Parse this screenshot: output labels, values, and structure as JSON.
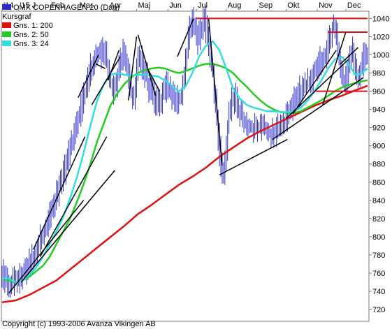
{
  "chart_data": {
    "type": "line",
    "title": "OMX COPENHAGEN 20 (Dag)",
    "subtitle": "Kursgraf",
    "copyright": "Copyright (c) 1993-2006 Avanza Vikingen AB",
    "x_tick_labels": [
      "'14",
      "'15 J",
      "Feb",
      "Mar",
      "Apr",
      "Maj",
      "Jun",
      "Jul",
      "Aug",
      "Sep",
      "Okt",
      "Nov",
      "Dec"
    ],
    "x_tick_index": [
      0,
      12,
      35,
      56,
      78,
      99,
      122,
      143,
      165,
      188,
      209,
      232,
      253
    ],
    "num_days": 270,
    "y_ticks": [
      720,
      740,
      760,
      780,
      800,
      820,
      840,
      860,
      880,
      900,
      920,
      940,
      960,
      980,
      1000,
      1020,
      1040
    ],
    "ylim": [
      707,
      1048
    ],
    "grid": false,
    "legend_position": "top-left",
    "colors": {
      "price": "#2b2bcc",
      "gns200": "#e01010",
      "gns50": "#22cc22",
      "gns24": "#33dddd",
      "trendline": "#000000",
      "resistance": "#e01010",
      "frame": "#7a7a7a"
    },
    "close_keypoints": [
      [
        0,
        760
      ],
      [
        3,
        752
      ],
      [
        6,
        748
      ],
      [
        10,
        752
      ],
      [
        14,
        755
      ],
      [
        18,
        765
      ],
      [
        22,
        773
      ],
      [
        26,
        785
      ],
      [
        30,
        800
      ],
      [
        34,
        815
      ],
      [
        38,
        830
      ],
      [
        42,
        850
      ],
      [
        46,
        870
      ],
      [
        50,
        890
      ],
      [
        54,
        910
      ],
      [
        58,
        935
      ],
      [
        62,
        960
      ],
      [
        66,
        985
      ],
      [
        70,
        998
      ],
      [
        73,
        1002
      ],
      [
        76,
        1005
      ],
      [
        79,
        985
      ],
      [
        82,
        960
      ],
      [
        85,
        970
      ],
      [
        88,
        990
      ],
      [
        90,
        1000
      ],
      [
        93,
        985
      ],
      [
        96,
        960
      ],
      [
        98,
        950
      ],
      [
        101,
        1000
      ],
      [
        104,
        990
      ],
      [
        107,
        975
      ],
      [
        110,
        960
      ],
      [
        113,
        950
      ],
      [
        116,
        945
      ],
      [
        119,
        955
      ],
      [
        122,
        965
      ],
      [
        126,
        955
      ],
      [
        130,
        950
      ],
      [
        133,
        955
      ],
      [
        136,
        990
      ],
      [
        139,
        1030
      ],
      [
        141,
        1040
      ],
      [
        143,
        1030
      ],
      [
        145,
        1015
      ],
      [
        148,
        1030
      ],
      [
        150,
        1040
      ],
      [
        152,
        1020
      ],
      [
        154,
        1000
      ],
      [
        156,
        980
      ],
      [
        158,
        945
      ],
      [
        160,
        910
      ],
      [
        162,
        880
      ],
      [
        164,
        872
      ],
      [
        166,
        900
      ],
      [
        168,
        935
      ],
      [
        170,
        955
      ],
      [
        173,
        950
      ],
      [
        176,
        935
      ],
      [
        180,
        925
      ],
      [
        184,
        920
      ],
      [
        188,
        918
      ],
      [
        192,
        922
      ],
      [
        196,
        915
      ],
      [
        200,
        913
      ],
      [
        204,
        918
      ],
      [
        208,
        925
      ],
      [
        212,
        935
      ],
      [
        216,
        950
      ],
      [
        220,
        960
      ],
      [
        224,
        965
      ],
      [
        228,
        975
      ],
      [
        232,
        985
      ],
      [
        236,
        995
      ],
      [
        240,
        1005
      ],
      [
        243,
        1025
      ],
      [
        245,
        1035
      ],
      [
        247,
        1020
      ],
      [
        249,
        1000
      ],
      [
        251,
        980
      ],
      [
        253,
        965
      ],
      [
        255,
        975
      ],
      [
        257,
        995
      ],
      [
        259,
        1005
      ],
      [
        261,
        985
      ],
      [
        263,
        975
      ],
      [
        265,
        985
      ],
      [
        267,
        998
      ],
      [
        269,
        995
      ]
    ],
    "series": [
      {
        "name": "OMX COPENHAGEN 20 (Dag)",
        "kind": "price-bars"
      },
      {
        "name": "Kursgraf",
        "kind": "trendlines"
      },
      {
        "name": "Gns. 1: 200",
        "period": 200,
        "values": [
          [
            0,
            728
          ],
          [
            10,
            730
          ],
          [
            20,
            736
          ],
          [
            30,
            744
          ],
          [
            40,
            752
          ],
          [
            50,
            764
          ],
          [
            60,
            776
          ],
          [
            70,
            788
          ],
          [
            80,
            800
          ],
          [
            90,
            812
          ],
          [
            100,
            825
          ],
          [
            110,
            835
          ],
          [
            120,
            846
          ],
          [
            130,
            857
          ],
          [
            140,
            866
          ],
          [
            150,
            876
          ],
          [
            160,
            888
          ],
          [
            170,
            898
          ],
          [
            180,
            908
          ],
          [
            190,
            916
          ],
          [
            200,
            923
          ],
          [
            210,
            930
          ],
          [
            220,
            937
          ],
          [
            230,
            944
          ],
          [
            240,
            950
          ],
          [
            250,
            955
          ],
          [
            260,
            961
          ],
          [
            269,
            966
          ]
        ]
      },
      {
        "name": "Gns. 2: 50",
        "period": 50,
        "values": [
          [
            0,
            754
          ],
          [
            5,
            752
          ],
          [
            10,
            750
          ],
          [
            15,
            752
          ],
          [
            20,
            756
          ],
          [
            25,
            762
          ],
          [
            30,
            768
          ],
          [
            35,
            778
          ],
          [
            40,
            792
          ],
          [
            45,
            806
          ],
          [
            50,
            820
          ],
          [
            55,
            838
          ],
          [
            60,
            858
          ],
          [
            65,
            880
          ],
          [
            70,
            905
          ],
          [
            75,
            925
          ],
          [
            80,
            945
          ],
          [
            85,
            958
          ],
          [
            90,
            968
          ],
          [
            95,
            975
          ],
          [
            100,
            980
          ],
          [
            105,
            983
          ],
          [
            110,
            985
          ],
          [
            115,
            986
          ],
          [
            120,
            985
          ],
          [
            125,
            982
          ],
          [
            130,
            980
          ],
          [
            135,
            982
          ],
          [
            140,
            985
          ],
          [
            145,
            988
          ],
          [
            150,
            990
          ],
          [
            155,
            990
          ],
          [
            160,
            988
          ],
          [
            165,
            985
          ],
          [
            170,
            980
          ],
          [
            175,
            972
          ],
          [
            180,
            965
          ],
          [
            185,
            957
          ],
          [
            190,
            950
          ],
          [
            195,
            944
          ],
          [
            200,
            940
          ],
          [
            205,
            937
          ],
          [
            210,
            936
          ],
          [
            215,
            936
          ],
          [
            220,
            938
          ],
          [
            225,
            942
          ],
          [
            230,
            946
          ],
          [
            235,
            950
          ],
          [
            240,
            955
          ],
          [
            245,
            960
          ],
          [
            250,
            964
          ],
          [
            255,
            967
          ],
          [
            260,
            969
          ],
          [
            265,
            971
          ],
          [
            269,
            972
          ]
        ]
      },
      {
        "name": "Gns. 3: 24",
        "period": 24,
        "values": [
          [
            0,
            754
          ],
          [
            5,
            754
          ],
          [
            10,
            750
          ],
          [
            15,
            752
          ],
          [
            20,
            758
          ],
          [
            25,
            766
          ],
          [
            30,
            778
          ],
          [
            35,
            792
          ],
          [
            40,
            806
          ],
          [
            45,
            822
          ],
          [
            50,
            842
          ],
          [
            55,
            865
          ],
          [
            60,
            892
          ],
          [
            65,
            922
          ],
          [
            70,
            950
          ],
          [
            75,
            968
          ],
          [
            80,
            978
          ],
          [
            85,
            980
          ],
          [
            90,
            978
          ],
          [
            95,
            977
          ],
          [
            100,
            978
          ],
          [
            105,
            978
          ],
          [
            110,
            977
          ],
          [
            115,
            976
          ],
          [
            120,
            972
          ],
          [
            125,
            966
          ],
          [
            130,
            960
          ],
          [
            135,
            965
          ],
          [
            140,
            980
          ],
          [
            145,
            998
          ],
          [
            150,
            1010
          ],
          [
            155,
            1015
          ],
          [
            160,
            1005
          ],
          [
            165,
            985
          ],
          [
            170,
            963
          ],
          [
            175,
            952
          ],
          [
            180,
            945
          ],
          [
            185,
            942
          ],
          [
            190,
            940
          ],
          [
            195,
            938
          ],
          [
            200,
            938
          ],
          [
            205,
            937
          ],
          [
            210,
            937
          ],
          [
            215,
            938
          ],
          [
            220,
            942
          ],
          [
            225,
            950
          ],
          [
            230,
            960
          ],
          [
            235,
            972
          ],
          [
            240,
            985
          ],
          [
            245,
            995
          ],
          [
            250,
            998
          ],
          [
            255,
            990
          ],
          [
            260,
            978
          ],
          [
            265,
            980
          ],
          [
            269,
            985
          ]
        ]
      }
    ],
    "trendlines": [
      [
        [
          5,
          738
        ],
        [
          60,
          840
        ]
      ],
      [
        [
          14,
          750
        ],
        [
          83,
          873
        ]
      ],
      [
        [
          23,
          786
        ],
        [
          61,
          910
        ]
      ],
      [
        [
          28,
          778
        ],
        [
          77,
          910
        ]
      ],
      [
        [
          56,
          953
        ],
        [
          71,
          1000
        ]
      ],
      [
        [
          66,
          945
        ],
        [
          87,
          998
        ]
      ],
      [
        [
          69,
          990
        ],
        [
          76,
          985
        ]
      ],
      [
        [
          78,
          972
        ],
        [
          86,
          1005
        ]
      ],
      [
        [
          93,
          950
        ],
        [
          99,
          1020
        ]
      ],
      [
        [
          100,
          1022
        ],
        [
          113,
          955
        ]
      ],
      [
        [
          107,
          985
        ],
        [
          116,
          960
        ]
      ],
      [
        [
          129,
          998
        ],
        [
          141,
          1040
        ]
      ],
      [
        [
          152,
          1040
        ],
        [
          162,
          878
        ]
      ],
      [
        [
          160,
          868
        ],
        [
          210,
          907
        ]
      ],
      [
        [
          199,
          907
        ],
        [
          266,
          975
        ]
      ],
      [
        [
          209,
          930
        ],
        [
          255,
          995
        ]
      ],
      [
        [
          214,
          935
        ],
        [
          246,
          1005
        ]
      ],
      [
        [
          236,
          945
        ],
        [
          253,
          1025
        ]
      ],
      [
        [
          249,
          990
        ],
        [
          262,
          1008
        ]
      ]
    ],
    "resistance_lines": [
      {
        "value": 1040,
        "x_from": 143,
        "x_to": 269
      },
      {
        "value": 1025,
        "x_from": 240,
        "x_to": 269
      },
      {
        "value": 960,
        "x_from": 231,
        "x_to": 269
      }
    ]
  }
}
